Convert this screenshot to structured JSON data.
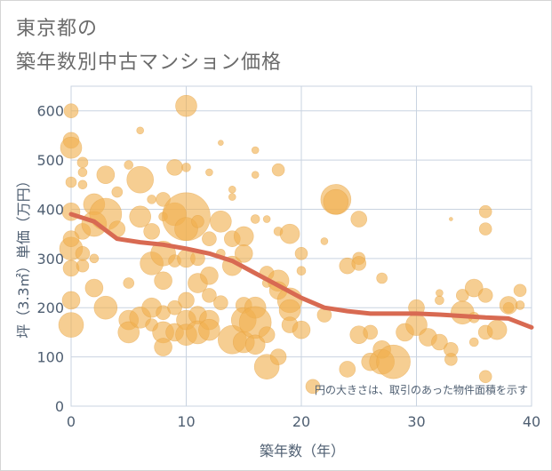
{
  "title_line1": "東京都の",
  "title_line2": "築年数別中古マンション価格",
  "note": "円の大きさは、取引のあった物件面積を示す",
  "colors": {
    "bubble": "#f0b04f",
    "trend": "#d86a52",
    "grid": "#c9d3e0",
    "text": "#4f5f72"
  },
  "chart_data": {
    "type": "scatter",
    "xlabel": "築年数（年）",
    "ylabel": "坪（3.3㎡）単価（万円）",
    "xlim": [
      0,
      40
    ],
    "ylim": [
      0,
      650
    ],
    "xticks": [
      0,
      10,
      20,
      30,
      40
    ],
    "yticks": [
      0,
      100,
      200,
      300,
      400,
      500,
      600
    ],
    "grid": true,
    "points": [
      {
        "x": 0,
        "y": 600,
        "s": 8
      },
      {
        "x": 0,
        "y": 540,
        "s": 9
      },
      {
        "x": 0,
        "y": 525,
        "s": 12
      },
      {
        "x": 0,
        "y": 455,
        "s": 6
      },
      {
        "x": 0,
        "y": 395,
        "s": 10
      },
      {
        "x": 0,
        "y": 320,
        "s": 13
      },
      {
        "x": 0,
        "y": 280,
        "s": 9
      },
      {
        "x": 0,
        "y": 215,
        "s": 10
      },
      {
        "x": 0,
        "y": 165,
        "s": 14
      },
      {
        "x": 1,
        "y": 495,
        "s": 6
      },
      {
        "x": 1,
        "y": 475,
        "s": 5
      },
      {
        "x": 1,
        "y": 355,
        "s": 9
      },
      {
        "x": 1,
        "y": 310,
        "s": 8
      },
      {
        "x": 1,
        "y": 285,
        "s": 7
      },
      {
        "x": 2,
        "y": 410,
        "s": 12
      },
      {
        "x": 2,
        "y": 370,
        "s": 14
      },
      {
        "x": 2,
        "y": 300,
        "s": 5
      },
      {
        "x": 2,
        "y": 240,
        "s": 10
      },
      {
        "x": 3,
        "y": 470,
        "s": 10
      },
      {
        "x": 3,
        "y": 390,
        "s": 18
      },
      {
        "x": 3,
        "y": 200,
        "s": 13
      },
      {
        "x": 4,
        "y": 435,
        "s": 6
      },
      {
        "x": 4,
        "y": 360,
        "s": 9
      },
      {
        "x": 5,
        "y": 490,
        "s": 5
      },
      {
        "x": 5,
        "y": 250,
        "s": 6
      },
      {
        "x": 5,
        "y": 175,
        "s": 11
      },
      {
        "x": 5,
        "y": 150,
        "s": 12
      },
      {
        "x": 6,
        "y": 560,
        "s": 4
      },
      {
        "x": 6,
        "y": 460,
        "s": 15
      },
      {
        "x": 6,
        "y": 385,
        "s": 12
      },
      {
        "x": 6,
        "y": 180,
        "s": 12
      },
      {
        "x": 7,
        "y": 420,
        "s": 5
      },
      {
        "x": 7,
        "y": 355,
        "s": 9
      },
      {
        "x": 7,
        "y": 290,
        "s": 13
      },
      {
        "x": 7,
        "y": 200,
        "s": 11
      },
      {
        "x": 7,
        "y": 165,
        "s": 7
      },
      {
        "x": 8,
        "y": 420,
        "s": 8
      },
      {
        "x": 8,
        "y": 385,
        "s": 5
      },
      {
        "x": 8,
        "y": 310,
        "s": 14
      },
      {
        "x": 8,
        "y": 255,
        "s": 10
      },
      {
        "x": 8,
        "y": 190,
        "s": 8
      },
      {
        "x": 8,
        "y": 150,
        "s": 12
      },
      {
        "x": 8,
        "y": 120,
        "s": 10
      },
      {
        "x": 9,
        "y": 485,
        "s": 9
      },
      {
        "x": 9,
        "y": 390,
        "s": 13
      },
      {
        "x": 9,
        "y": 295,
        "s": 7
      },
      {
        "x": 9,
        "y": 200,
        "s": 8
      },
      {
        "x": 9,
        "y": 150,
        "s": 10
      },
      {
        "x": 10,
        "y": 610,
        "s": 12
      },
      {
        "x": 10,
        "y": 485,
        "s": 5
      },
      {
        "x": 10,
        "y": 385,
        "s": 27
      },
      {
        "x": 10,
        "y": 360,
        "s": 13
      },
      {
        "x": 10,
        "y": 300,
        "s": 10
      },
      {
        "x": 10,
        "y": 215,
        "s": 9
      },
      {
        "x": 10,
        "y": 175,
        "s": 11
      },
      {
        "x": 10,
        "y": 145,
        "s": 12
      },
      {
        "x": 11,
        "y": 375,
        "s": 7
      },
      {
        "x": 11,
        "y": 300,
        "s": 8
      },
      {
        "x": 11,
        "y": 250,
        "s": 11
      },
      {
        "x": 11,
        "y": 185,
        "s": 10
      },
      {
        "x": 11,
        "y": 150,
        "s": 13
      },
      {
        "x": 12,
        "y": 475,
        "s": 4
      },
      {
        "x": 12,
        "y": 340,
        "s": 8
      },
      {
        "x": 12,
        "y": 265,
        "s": 10
      },
      {
        "x": 12,
        "y": 225,
        "s": 8
      },
      {
        "x": 12,
        "y": 175,
        "s": 11
      },
      {
        "x": 12,
        "y": 155,
        "s": 12
      },
      {
        "x": 13,
        "y": 535,
        "s": 3
      },
      {
        "x": 13,
        "y": 375,
        "s": 12
      },
      {
        "x": 13,
        "y": 310,
        "s": 5
      },
      {
        "x": 13,
        "y": 210,
        "s": 8
      },
      {
        "x": 14,
        "y": 440,
        "s": 4
      },
      {
        "x": 14,
        "y": 425,
        "s": 4
      },
      {
        "x": 14,
        "y": 340,
        "s": 9
      },
      {
        "x": 14,
        "y": 285,
        "s": 11
      },
      {
        "x": 14,
        "y": 135,
        "s": 16
      },
      {
        "x": 15,
        "y": 345,
        "s": 11
      },
      {
        "x": 15,
        "y": 310,
        "s": 10
      },
      {
        "x": 15,
        "y": 205,
        "s": 9
      },
      {
        "x": 15,
        "y": 175,
        "s": 14
      },
      {
        "x": 15,
        "y": 130,
        "s": 12
      },
      {
        "x": 16,
        "y": 520,
        "s": 4
      },
      {
        "x": 16,
        "y": 470,
        "s": 4
      },
      {
        "x": 16,
        "y": 380,
        "s": 5
      },
      {
        "x": 16,
        "y": 200,
        "s": 12
      },
      {
        "x": 16,
        "y": 170,
        "s": 18
      },
      {
        "x": 16,
        "y": 125,
        "s": 11
      },
      {
        "x": 17,
        "y": 380,
        "s": 4
      },
      {
        "x": 17,
        "y": 270,
        "s": 8
      },
      {
        "x": 17,
        "y": 145,
        "s": 9
      },
      {
        "x": 17,
        "y": 80,
        "s": 14
      },
      {
        "x": 18,
        "y": 480,
        "s": 7
      },
      {
        "x": 18,
        "y": 355,
        "s": 5
      },
      {
        "x": 18,
        "y": 255,
        "s": 12
      },
      {
        "x": 18,
        "y": 235,
        "s": 10
      },
      {
        "x": 18,
        "y": 100,
        "s": 9
      },
      {
        "x": 19,
        "y": 350,
        "s": 11
      },
      {
        "x": 19,
        "y": 215,
        "s": 14
      },
      {
        "x": 19,
        "y": 195,
        "s": 12
      },
      {
        "x": 19,
        "y": 165,
        "s": 9
      },
      {
        "x": 20,
        "y": 310,
        "s": 7
      },
      {
        "x": 20,
        "y": 275,
        "s": 5
      },
      {
        "x": 20,
        "y": 155,
        "s": 10
      },
      {
        "x": 21,
        "y": 40,
        "s": 8
      },
      {
        "x": 22,
        "y": 335,
        "s": 4
      },
      {
        "x": 22,
        "y": 185,
        "s": 8
      },
      {
        "x": 23,
        "y": 420,
        "s": 17
      },
      {
        "x": 23,
        "y": 415,
        "s": 14
      },
      {
        "x": 24,
        "y": 285,
        "s": 9
      },
      {
        "x": 24,
        "y": 75,
        "s": 9
      },
      {
        "x": 25,
        "y": 380,
        "s": 9
      },
      {
        "x": 25,
        "y": 300,
        "s": 7
      },
      {
        "x": 25,
        "y": 290,
        "s": 8
      },
      {
        "x": 25,
        "y": 145,
        "s": 10
      },
      {
        "x": 26,
        "y": 90,
        "s": 10
      },
      {
        "x": 26,
        "y": 150,
        "s": 8
      },
      {
        "x": 27,
        "y": 260,
        "s": 6
      },
      {
        "x": 27,
        "y": 115,
        "s": 10
      },
      {
        "x": 27,
        "y": 90,
        "s": 14
      },
      {
        "x": 28,
        "y": 90,
        "s": 19
      },
      {
        "x": 29,
        "y": 150,
        "s": 10
      },
      {
        "x": 30,
        "y": 200,
        "s": 9
      },
      {
        "x": 30,
        "y": 165,
        "s": 12
      },
      {
        "x": 31,
        "y": 140,
        "s": 10
      },
      {
        "x": 32,
        "y": 230,
        "s": 4
      },
      {
        "x": 32,
        "y": 215,
        "s": 5
      },
      {
        "x": 32,
        "y": 130,
        "s": 9
      },
      {
        "x": 33,
        "y": 115,
        "s": 8
      },
      {
        "x": 33,
        "y": 95,
        "s": 7
      },
      {
        "x": 33,
        "y": 380,
        "s": 2
      },
      {
        "x": 34,
        "y": 225,
        "s": 7
      },
      {
        "x": 34,
        "y": 190,
        "s": 13
      },
      {
        "x": 35,
        "y": 240,
        "s": 10
      },
      {
        "x": 35,
        "y": 180,
        "s": 6
      },
      {
        "x": 36,
        "y": 395,
        "s": 7
      },
      {
        "x": 36,
        "y": 360,
        "s": 7
      },
      {
        "x": 36,
        "y": 225,
        "s": 8
      },
      {
        "x": 36,
        "y": 150,
        "s": 8
      },
      {
        "x": 36,
        "y": 60,
        "s": 7
      },
      {
        "x": 37,
        "y": 155,
        "s": 11
      },
      {
        "x": 38,
        "y": 200,
        "s": 6
      },
      {
        "x": 38,
        "y": 205,
        "s": 10
      },
      {
        "x": 39,
        "y": 235,
        "s": 7
      },
      {
        "x": 39,
        "y": 205,
        "s": 5
      },
      {
        "x": 0,
        "y": 340,
        "s": 9
      },
      {
        "x": 1,
        "y": 450,
        "s": 5
      },
      {
        "x": 17,
        "y": 250,
        "s": 5
      },
      {
        "x": 35,
        "y": 130,
        "s": 5
      }
    ],
    "trend": [
      [
        0,
        390
      ],
      [
        2,
        375
      ],
      [
        4,
        340
      ],
      [
        6,
        333
      ],
      [
        8,
        328
      ],
      [
        10,
        320
      ],
      [
        12,
        310
      ],
      [
        14,
        295
      ],
      [
        16,
        270
      ],
      [
        18,
        245
      ],
      [
        20,
        220
      ],
      [
        22,
        200
      ],
      [
        24,
        193
      ],
      [
        26,
        188
      ],
      [
        28,
        188
      ],
      [
        30,
        188
      ],
      [
        32,
        186
      ],
      [
        34,
        183
      ],
      [
        36,
        180
      ],
      [
        38,
        178
      ],
      [
        40,
        160
      ]
    ]
  }
}
